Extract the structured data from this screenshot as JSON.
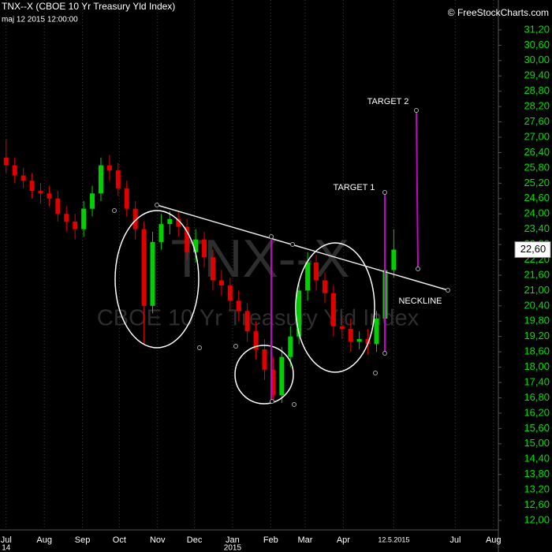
{
  "chart_data": {
    "type": "candlestick",
    "title": "TNX--X (CBOE 10 Yr Treasury Yld Index)",
    "subtitle": "maj 12 2015 12:00:00",
    "credit": "© FreeStockCharts.com",
    "watermark_symbol": "TNX--X",
    "watermark_name": "CBOE 10 Yr Treasury Yld Index",
    "annotations": {
      "target_2": "TARGET 2",
      "target_1": "TARGET 1",
      "neckline": "NECKLINE"
    },
    "up_color": "#00d000",
    "down_color": "#e00000",
    "grid": true,
    "x": [
      0,
      7,
      14,
      21,
      28,
      35,
      42,
      49,
      56,
      63,
      70,
      77,
      84,
      91,
      98,
      105,
      112,
      119,
      126,
      133,
      140,
      147,
      154,
      161,
      168,
      175,
      182,
      189,
      196,
      203,
      210,
      217,
      224,
      231,
      238,
      245,
      252,
      259,
      266,
      273,
      280,
      287,
      294,
      301,
      308,
      315
    ],
    "open": [
      26.2,
      25.9,
      25.5,
      25.3,
      24.9,
      24.8,
      24.6,
      24.0,
      23.7,
      23.4,
      24.2,
      24.8,
      25.9,
      25.7,
      25.0,
      24.2,
      23.4,
      20.4,
      22.9,
      23.6,
      23.8,
      23.5,
      22.5,
      23.0,
      22.3,
      21.4,
      21.2,
      20.6,
      20.2,
      19.4,
      18.7,
      17.9,
      16.9,
      18.4,
      19.2,
      21.0,
      22.1,
      21.4,
      20.9,
      19.6,
      19.5,
      19.0,
      19.1,
      18.9,
      19.9,
      21.8
    ],
    "high": [
      26.9,
      26.2,
      25.8,
      25.6,
      25.2,
      25.1,
      24.9,
      24.3,
      24.0,
      24.5,
      25.1,
      26.2,
      26.3,
      26.0,
      25.3,
      24.5,
      23.7,
      23.3,
      24.0,
      24.1,
      24.1,
      23.8,
      23.4,
      23.3,
      22.6,
      21.8,
      21.5,
      21.0,
      20.5,
      19.8,
      19.1,
      18.4,
      18.8,
      19.6,
      21.3,
      22.5,
      22.4,
      21.7,
      21.2,
      20.0,
      19.9,
      19.4,
      19.5,
      20.2,
      22.2,
      23.4
    ],
    "low": [
      25.6,
      25.2,
      25.0,
      24.6,
      24.4,
      24.3,
      23.7,
      23.3,
      23.0,
      23.1,
      23.9,
      24.5,
      25.3,
      24.7,
      23.9,
      23.0,
      18.9,
      20.1,
      22.6,
      23.2,
      23.1,
      22.2,
      22.1,
      21.9,
      21.0,
      20.8,
      20.2,
      19.8,
      19.0,
      18.3,
      17.5,
      16.6,
      16.6,
      18.0,
      18.9,
      20.6,
      21.0,
      20.5,
      19.2,
      19.1,
      18.6,
      18.7,
      18.5,
      18.6,
      19.6,
      21.5
    ],
    "close": [
      25.9,
      25.5,
      25.3,
      24.9,
      24.8,
      24.6,
      24.0,
      23.7,
      23.4,
      24.2,
      24.8,
      25.9,
      25.7,
      25.0,
      24.2,
      23.4,
      20.4,
      22.9,
      23.6,
      23.8,
      23.5,
      22.5,
      23.0,
      22.3,
      21.4,
      21.2,
      20.6,
      20.2,
      19.4,
      18.7,
      17.9,
      16.9,
      18.4,
      19.2,
      21.0,
      22.1,
      21.4,
      20.9,
      19.6,
      19.5,
      19.0,
      19.1,
      18.9,
      19.9,
      21.8,
      22.6
    ],
    "last_value": {
      "value": 22.6,
      "label": "22,60"
    },
    "xlim": [
      -5,
      400
    ],
    "xticks": [
      {
        "value": 0,
        "label": "Jul"
      },
      {
        "value": 31,
        "label": "Aug"
      },
      {
        "value": 62,
        "label": "Sep"
      },
      {
        "value": 92,
        "label": "Oct"
      },
      {
        "value": 123,
        "label": "Nov"
      },
      {
        "value": 153,
        "label": "Dec"
      },
      {
        "value": 184,
        "label": "Jan"
      },
      {
        "value": 215,
        "label": "Feb"
      },
      {
        "value": 243,
        "label": "Mar"
      },
      {
        "value": 274,
        "label": "Apr"
      },
      {
        "value": 315,
        "label": "12.5.2015"
      },
      {
        "value": 365,
        "label": "Jul"
      },
      {
        "value": 396,
        "label": "Aug"
      }
    ],
    "x_sublabels": [
      {
        "value": 0,
        "label": "14"
      },
      {
        "value": 184,
        "label": "2015"
      }
    ],
    "ylim": [
      11.63,
      32.37
    ],
    "yticks": [
      {
        "value": 12,
        "label": "12,00"
      },
      {
        "value": 12.6,
        "label": "12,60"
      },
      {
        "value": 13.2,
        "label": "13,20"
      },
      {
        "value": 13.8,
        "label": "13,80"
      },
      {
        "value": 14.4,
        "label": "14,40"
      },
      {
        "value": 15,
        "label": "15,00"
      },
      {
        "value": 15.6,
        "label": "15,60"
      },
      {
        "value": 16.2,
        "label": "16,20"
      },
      {
        "value": 16.8,
        "label": "16,80"
      },
      {
        "value": 17.4,
        "label": "17,40"
      },
      {
        "value": 18,
        "label": "18,00"
      },
      {
        "value": 18.6,
        "label": "18,60"
      },
      {
        "value": 19.2,
        "label": "19,20"
      },
      {
        "value": 19.8,
        "label": "19,80"
      },
      {
        "value": 20.4,
        "label": "20,40"
      },
      {
        "value": 21,
        "label": "21,00"
      },
      {
        "value": 21.6,
        "label": "21,60"
      },
      {
        "value": 22.2,
        "label": "22,20"
      },
      {
        "value": 22.8,
        "label": "22,80"
      },
      {
        "value": 23.4,
        "label": "23,40"
      },
      {
        "value": 24,
        "label": "24,00"
      },
      {
        "value": 24.6,
        "label": "24,60"
      },
      {
        "value": 25.2,
        "label": "25,20"
      },
      {
        "value": 25.8,
        "label": "25,80"
      },
      {
        "value": 26.4,
        "label": "26,40"
      },
      {
        "value": 27,
        "label": "27,00"
      },
      {
        "value": 27.6,
        "label": "27,60"
      },
      {
        "value": 28.2,
        "label": "28,20"
      },
      {
        "value": 28.8,
        "label": "28,80"
      },
      {
        "value": 29.4,
        "label": "29,40"
      },
      {
        "value": 30,
        "label": "30,00"
      },
      {
        "value": 30.6,
        "label": "30,60"
      },
      {
        "value": 31.2,
        "label": "31,20"
      }
    ]
  }
}
